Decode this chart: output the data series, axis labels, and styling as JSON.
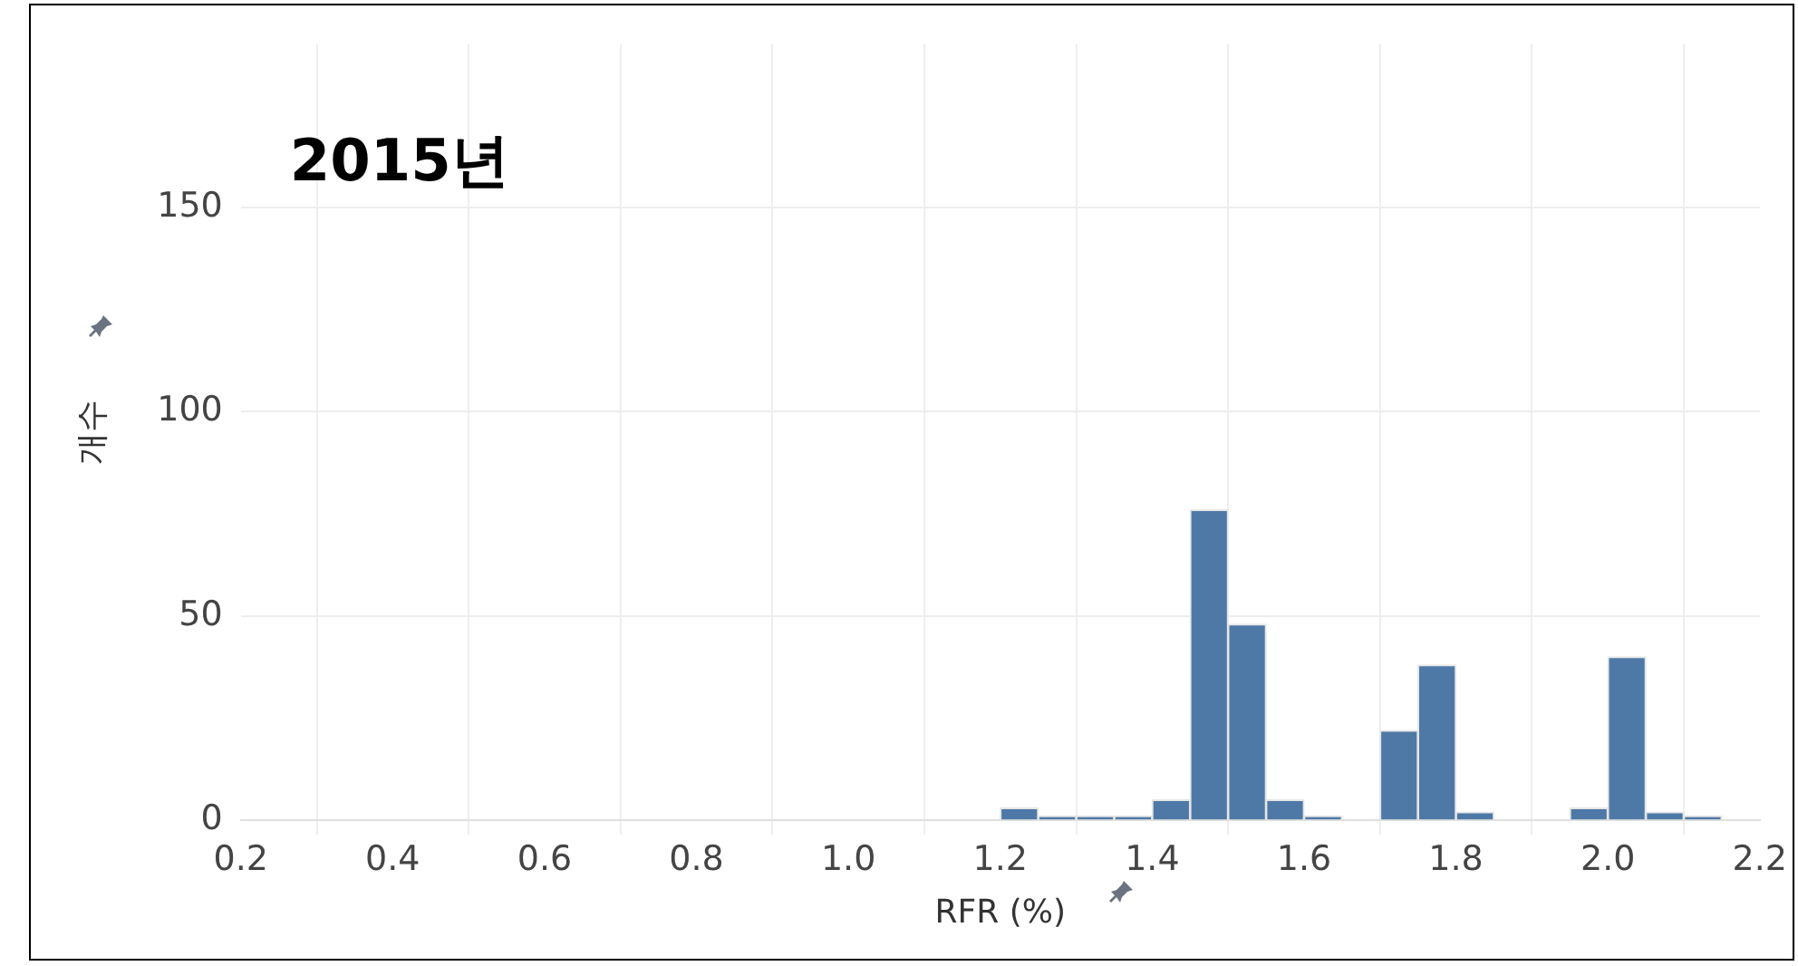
{
  "chart_data": {
    "type": "histogram",
    "title": "2015년",
    "xlabel": "RFR (%)",
    "ylabel": "개수",
    "bins": [
      1.2,
      1.25,
      1.3,
      1.35,
      1.4,
      1.45,
      1.5,
      1.55,
      1.6,
      1.65,
      1.7,
      1.75,
      1.8,
      1.85,
      1.9,
      1.95,
      2.0,
      2.05,
      2.1,
      2.15
    ],
    "values": [
      3,
      1,
      1,
      1,
      5,
      76,
      48,
      5,
      1,
      0,
      22,
      38,
      2,
      0,
      0,
      3,
      40,
      2,
      1
    ],
    "color": "#4e79a7",
    "xlim": [
      0.2,
      2.2
    ],
    "xticks": [
      0.2,
      0.4,
      0.6,
      0.8,
      {
        "value": 1,
        "label": "1.0"
      },
      1.2,
      1.4,
      1.6,
      1.8,
      {
        "value": 2,
        "label": "2.0"
      },
      2.2
    ],
    "ylim": [
      0,
      190
    ],
    "yticks": [
      0,
      50,
      100,
      150
    ],
    "grid": true,
    "legend": false
  }
}
